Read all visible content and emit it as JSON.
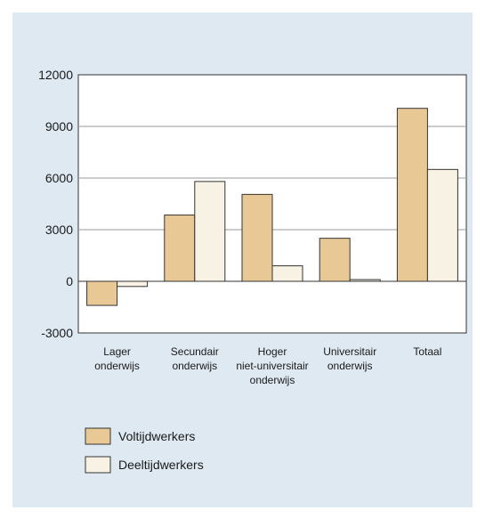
{
  "chart_data": {
    "type": "bar",
    "categories": [
      [
        "Lager",
        "onderwijs"
      ],
      [
        "Secundair",
        "onderwijs"
      ],
      [
        "Hoger",
        "niet-universitair",
        "onderwijs"
      ],
      [
        "Universitair",
        "onderwijs"
      ],
      [
        "Totaal"
      ]
    ],
    "series": [
      {
        "name": "Voltijdwerkers",
        "values": [
          -1400,
          3850,
          5050,
          2500,
          10050
        ],
        "color": "#e8c996"
      },
      {
        "name": "Deeltijdwerkers",
        "values": [
          -300,
          5800,
          900,
          100,
          6500
        ],
        "color": "#f7f2e4"
      }
    ],
    "yticks": [
      "12000",
      "9000",
      "6000",
      "3000",
      "0",
      "-3000"
    ],
    "ylim": [
      -3000,
      12000
    ],
    "grid": true,
    "legend": "bottom-left"
  }
}
